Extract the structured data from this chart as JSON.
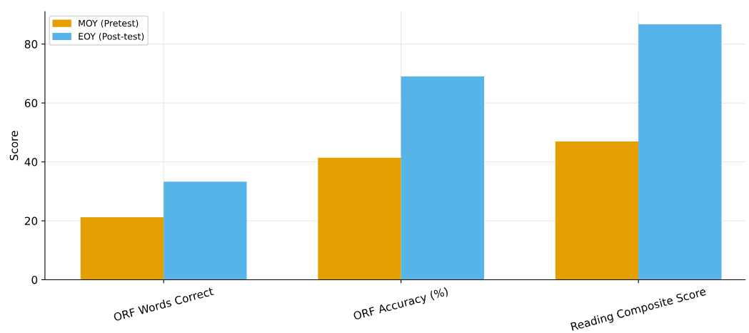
{
  "chart_data": {
    "type": "bar",
    "ylabel": "Score",
    "categories": [
      "ORF Words Correct",
      "ORF Accuracy (%)",
      "Reading Composite Score"
    ],
    "series": [
      {
        "name": "MOY (Pretest)",
        "color": "#e69f00",
        "values": [
          21.2,
          41.4,
          46.9
        ]
      },
      {
        "name": "EOY (Post-test)",
        "color": "#56b4e9",
        "values": [
          33.3,
          69.0,
          86.7
        ]
      }
    ],
    "ylim": [
      0,
      91
    ],
    "yticks": [
      0,
      20,
      40,
      60,
      80
    ],
    "grid": true,
    "legend": "top left"
  }
}
